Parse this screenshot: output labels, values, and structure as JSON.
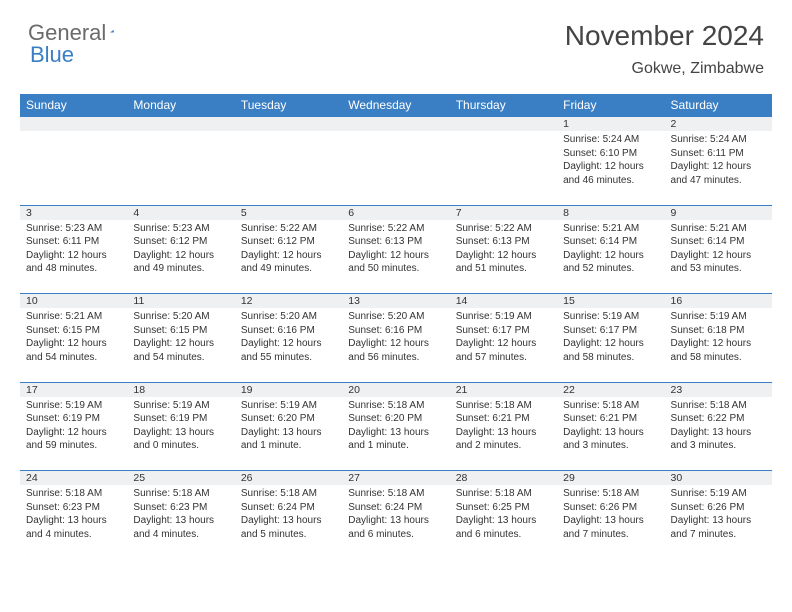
{
  "logo": {
    "general": "General",
    "blue": "Blue"
  },
  "title": "November 2024",
  "location": "Gokwe, Zimbabwe",
  "colors": {
    "header_bg": "#3a7fc4",
    "header_text": "#ffffff",
    "daynum_bg": "#eef0f2",
    "row_border": "#3a7fc4",
    "text": "#333333",
    "logo_gray": "#6a6a6a",
    "logo_blue": "#3a7fc4",
    "page_bg": "#ffffff"
  },
  "typography": {
    "title_fontsize": 28,
    "location_fontsize": 16,
    "header_fontsize": 12,
    "daynum_fontsize": 10.5,
    "cell_fontsize": 10
  },
  "day_headers": [
    "Sunday",
    "Monday",
    "Tuesday",
    "Wednesday",
    "Thursday",
    "Friday",
    "Saturday"
  ],
  "weeks": [
    [
      null,
      null,
      null,
      null,
      null,
      {
        "n": "1",
        "sunrise": "5:24 AM",
        "sunset": "6:10 PM",
        "daylight": "12 hours and 46 minutes."
      },
      {
        "n": "2",
        "sunrise": "5:24 AM",
        "sunset": "6:11 PM",
        "daylight": "12 hours and 47 minutes."
      }
    ],
    [
      {
        "n": "3",
        "sunrise": "5:23 AM",
        "sunset": "6:11 PM",
        "daylight": "12 hours and 48 minutes."
      },
      {
        "n": "4",
        "sunrise": "5:23 AM",
        "sunset": "6:12 PM",
        "daylight": "12 hours and 49 minutes."
      },
      {
        "n": "5",
        "sunrise": "5:22 AM",
        "sunset": "6:12 PM",
        "daylight": "12 hours and 49 minutes."
      },
      {
        "n": "6",
        "sunrise": "5:22 AM",
        "sunset": "6:13 PM",
        "daylight": "12 hours and 50 minutes."
      },
      {
        "n": "7",
        "sunrise": "5:22 AM",
        "sunset": "6:13 PM",
        "daylight": "12 hours and 51 minutes."
      },
      {
        "n": "8",
        "sunrise": "5:21 AM",
        "sunset": "6:14 PM",
        "daylight": "12 hours and 52 minutes."
      },
      {
        "n": "9",
        "sunrise": "5:21 AM",
        "sunset": "6:14 PM",
        "daylight": "12 hours and 53 minutes."
      }
    ],
    [
      {
        "n": "10",
        "sunrise": "5:21 AM",
        "sunset": "6:15 PM",
        "daylight": "12 hours and 54 minutes."
      },
      {
        "n": "11",
        "sunrise": "5:20 AM",
        "sunset": "6:15 PM",
        "daylight": "12 hours and 54 minutes."
      },
      {
        "n": "12",
        "sunrise": "5:20 AM",
        "sunset": "6:16 PM",
        "daylight": "12 hours and 55 minutes."
      },
      {
        "n": "13",
        "sunrise": "5:20 AM",
        "sunset": "6:16 PM",
        "daylight": "12 hours and 56 minutes."
      },
      {
        "n": "14",
        "sunrise": "5:19 AM",
        "sunset": "6:17 PM",
        "daylight": "12 hours and 57 minutes."
      },
      {
        "n": "15",
        "sunrise": "5:19 AM",
        "sunset": "6:17 PM",
        "daylight": "12 hours and 58 minutes."
      },
      {
        "n": "16",
        "sunrise": "5:19 AM",
        "sunset": "6:18 PM",
        "daylight": "12 hours and 58 minutes."
      }
    ],
    [
      {
        "n": "17",
        "sunrise": "5:19 AM",
        "sunset": "6:19 PM",
        "daylight": "12 hours and 59 minutes."
      },
      {
        "n": "18",
        "sunrise": "5:19 AM",
        "sunset": "6:19 PM",
        "daylight": "13 hours and 0 minutes."
      },
      {
        "n": "19",
        "sunrise": "5:19 AM",
        "sunset": "6:20 PM",
        "daylight": "13 hours and 1 minute."
      },
      {
        "n": "20",
        "sunrise": "5:18 AM",
        "sunset": "6:20 PM",
        "daylight": "13 hours and 1 minute."
      },
      {
        "n": "21",
        "sunrise": "5:18 AM",
        "sunset": "6:21 PM",
        "daylight": "13 hours and 2 minutes."
      },
      {
        "n": "22",
        "sunrise": "5:18 AM",
        "sunset": "6:21 PM",
        "daylight": "13 hours and 3 minutes."
      },
      {
        "n": "23",
        "sunrise": "5:18 AM",
        "sunset": "6:22 PM",
        "daylight": "13 hours and 3 minutes."
      }
    ],
    [
      {
        "n": "24",
        "sunrise": "5:18 AM",
        "sunset": "6:23 PM",
        "daylight": "13 hours and 4 minutes."
      },
      {
        "n": "25",
        "sunrise": "5:18 AM",
        "sunset": "6:23 PM",
        "daylight": "13 hours and 4 minutes."
      },
      {
        "n": "26",
        "sunrise": "5:18 AM",
        "sunset": "6:24 PM",
        "daylight": "13 hours and 5 minutes."
      },
      {
        "n": "27",
        "sunrise": "5:18 AM",
        "sunset": "6:24 PM",
        "daylight": "13 hours and 6 minutes."
      },
      {
        "n": "28",
        "sunrise": "5:18 AM",
        "sunset": "6:25 PM",
        "daylight": "13 hours and 6 minutes."
      },
      {
        "n": "29",
        "sunrise": "5:18 AM",
        "sunset": "6:26 PM",
        "daylight": "13 hours and 7 minutes."
      },
      {
        "n": "30",
        "sunrise": "5:19 AM",
        "sunset": "6:26 PM",
        "daylight": "13 hours and 7 minutes."
      }
    ]
  ],
  "labels": {
    "sunrise": "Sunrise:",
    "sunset": "Sunset:",
    "daylight": "Daylight:"
  }
}
